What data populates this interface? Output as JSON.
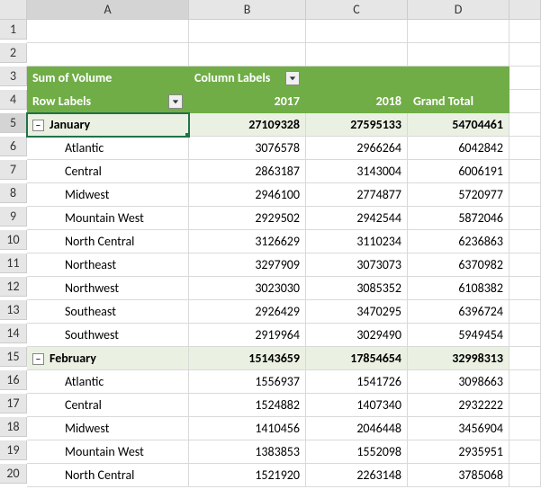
{
  "columns": [
    "A",
    "B",
    "C",
    "D",
    ""
  ],
  "rowcount": 20,
  "activeRowHeader": 5,
  "activeColHeader": "A",
  "pivot": {
    "sumlabel": "Sum of Volume",
    "colLabels": "Column Labels",
    "rowLabels": "Row Labels",
    "y2017": "2017",
    "y2018": "2018",
    "grandTotal": "Grand Total"
  },
  "groups": [
    {
      "month": "January",
      "t2017": "27109328",
      "t2018": "27595133",
      "tgrand": "54704461",
      "rows": [
        {
          "region": "Atlantic",
          "v2017": "3076578",
          "v2018": "2966264",
          "vgrand": "6042842"
        },
        {
          "region": "Central",
          "v2017": "2863187",
          "v2018": "3143004",
          "vgrand": "6006191"
        },
        {
          "region": "Midwest",
          "v2017": "2946100",
          "v2018": "2774877",
          "vgrand": "5720977"
        },
        {
          "region": "Mountain West",
          "v2017": "2929502",
          "v2018": "2942544",
          "vgrand": "5872046"
        },
        {
          "region": "North Central",
          "v2017": "3126629",
          "v2018": "3110234",
          "vgrand": "6236863"
        },
        {
          "region": "Northeast",
          "v2017": "3297909",
          "v2018": "3073073",
          "vgrand": "6370982"
        },
        {
          "region": "Northwest",
          "v2017": "3023030",
          "v2018": "3085352",
          "vgrand": "6108382"
        },
        {
          "region": "Southeast",
          "v2017": "2926429",
          "v2018": "3470295",
          "vgrand": "6396724"
        },
        {
          "region": "Southwest",
          "v2017": "2919964",
          "v2018": "3029490",
          "vgrand": "5949454"
        }
      ]
    },
    {
      "month": "February",
      "t2017": "15143659",
      "t2018": "17854654",
      "tgrand": "32998313",
      "rows": [
        {
          "region": "Atlantic",
          "v2017": "1556937",
          "v2018": "1541726",
          "vgrand": "3098663"
        },
        {
          "region": "Central",
          "v2017": "1524882",
          "v2018": "1407340",
          "vgrand": "2932222"
        },
        {
          "region": "Midwest",
          "v2017": "1410456",
          "v2018": "2046448",
          "vgrand": "3456904"
        },
        {
          "region": "Mountain West",
          "v2017": "1383853",
          "v2018": "1552098",
          "vgrand": "2935951"
        },
        {
          "region": "North Central",
          "v2017": "1521920",
          "v2018": "2263148",
          "vgrand": "3785068"
        }
      ]
    }
  ],
  "style": {
    "header_bg": "#70ad47",
    "header_fg": "#ffffff",
    "subtotal_bg": "#eaf1e3",
    "grid_color": "#d9d9d9",
    "selection_color": "#217346"
  }
}
